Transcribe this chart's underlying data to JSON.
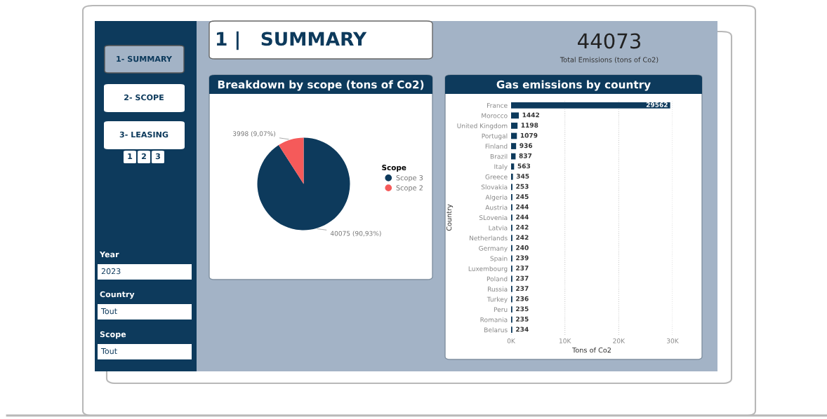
{
  "chart_data": [
    {
      "type": "other",
      "title": "1 |   SUMMARY",
      "annotations": [
        "1- SUMMARY",
        "2- SCOPE",
        "3- LEASING",
        "1",
        "2",
        "3",
        "Year",
        "2023",
        "Country",
        "Tout",
        "Scope",
        "Tout",
        "44073",
        "Total Emissions (tons of Co2)"
      ]
    },
    {
      "type": "pie",
      "title": "Breakdown by scope (tons of Co2)",
      "categories": [
        "Scope 3",
        "Scope 2"
      ],
      "values": [
        40075,
        3998
      ],
      "colors": [
        "#0d3a5c",
        "#f55a5a"
      ],
      "value_labels": [
        "40075 (90,93%)",
        "3998 (9,07%)"
      ],
      "legend_title": "Scope",
      "legend": "right"
    },
    {
      "type": "bar",
      "orientation": "horizontal",
      "title": "Gas emissions by country",
      "xlabel": "Tons of Co2",
      "ylabel": "Country",
      "color": "#0d3a5c",
      "categories": [
        "France",
        "Morocco",
        "United Kingdom",
        "Portugal",
        "Finland",
        "Brazil",
        "Italy",
        "Greece",
        "Slovakia",
        "Algeria",
        "Austria",
        "SLovenia",
        "Latvia",
        "Netherlands",
        "Germany",
        "Spain",
        "Luxembourg",
        "Poland",
        "Russia",
        "Turkey",
        "Peru",
        "Romania",
        "Belarus"
      ],
      "values": [
        29562,
        1442,
        1198,
        1079,
        936,
        837,
        563,
        345,
        253,
        245,
        244,
        244,
        242,
        242,
        240,
        239,
        237,
        237,
        237,
        236,
        235,
        235,
        234
      ],
      "xlim": [
        0,
        30000
      ],
      "xticks": [
        {
          "value": 0,
          "label": "0K"
        },
        {
          "value": 10000,
          "label": "10K"
        },
        {
          "value": 20000,
          "label": "20K"
        },
        {
          "value": 30000,
          "label": "30K"
        }
      ],
      "grid": "x",
      "data_labels": true
    }
  ]
}
